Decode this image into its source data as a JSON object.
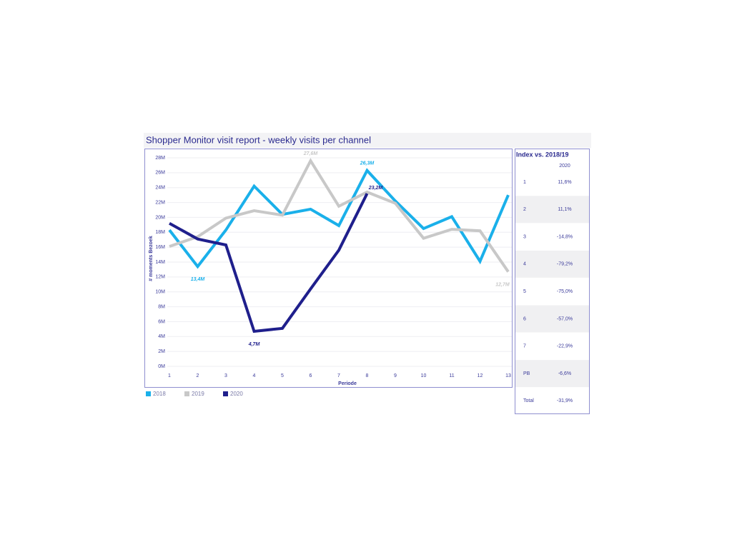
{
  "chart_data": {
    "type": "line",
    "title": "Shopper Monitor visit report - weekly visits per channel",
    "x_label": "Periode",
    "y_label": "# moments Bezoek",
    "categories": [
      "1",
      "2",
      "3",
      "4",
      "5",
      "6",
      "7",
      "8",
      "9",
      "10",
      "11",
      "12",
      "13"
    ],
    "series": [
      {
        "name": "2018",
        "color": "#1ab0ea",
        "values": [
          18.3,
          13.4,
          18.3,
          24.2,
          20.4,
          21.1,
          18.9,
          26.3,
          22.2,
          18.5,
          20.1,
          14.1,
          23.0
        ],
        "value_labels": [
          null,
          "13,4M",
          null,
          null,
          null,
          null,
          null,
          "26,3M",
          null,
          null,
          null,
          null,
          null
        ]
      },
      {
        "name": "2019",
        "color": "#c8c8c8",
        "values": [
          16.1,
          17.4,
          19.9,
          20.9,
          20.3,
          27.6,
          21.5,
          23.4,
          21.9,
          17.2,
          18.4,
          18.2,
          12.7
        ],
        "value_labels": [
          null,
          null,
          null,
          null,
          null,
          "27,6M",
          null,
          null,
          null,
          null,
          null,
          null,
          "12,7M"
        ]
      },
      {
        "name": "2020",
        "color": "#1f1f8c",
        "values": [
          19.2,
          17.1,
          16.3,
          4.7,
          5.1,
          10.4,
          15.6,
          23.2,
          null,
          null,
          null,
          null,
          null
        ],
        "value_labels": [
          null,
          null,
          null,
          "4,7M",
          null,
          null,
          null,
          "23,2M",
          null,
          null,
          null,
          null,
          null
        ]
      }
    ],
    "ylim": [
      0,
      28
    ],
    "yticks": [
      {
        "value": 0,
        "label": "0M"
      },
      {
        "value": 2,
        "label": "2M"
      },
      {
        "value": 4,
        "label": "4M"
      },
      {
        "value": 6,
        "label": "6M"
      },
      {
        "value": 8,
        "label": "8M"
      },
      {
        "value": 10,
        "label": "10M"
      },
      {
        "value": 12,
        "label": "12M"
      },
      {
        "value": 14,
        "label": "14M"
      },
      {
        "value": 16,
        "label": "16M"
      },
      {
        "value": 18,
        "label": "18M"
      },
      {
        "value": 20,
        "label": "20M"
      },
      {
        "value": 22,
        "label": "22M"
      },
      {
        "value": 24,
        "label": "24M"
      },
      {
        "value": 26,
        "label": "26M"
      },
      {
        "value": 28,
        "label": "28M"
      }
    ],
    "grid": true
  },
  "table": {
    "title": "Index vs. 2018/19",
    "header": "2020",
    "rows": [
      [
        "1",
        "11,6%"
      ],
      [
        "2",
        "11,1%"
      ],
      [
        "3",
        "-14,8%"
      ],
      [
        "4",
        "-79,2%"
      ],
      [
        "5",
        "-75,0%"
      ],
      [
        "6",
        "-57,0%"
      ],
      [
        "7",
        "-22,9%"
      ],
      [
        "PB",
        "-6,6%"
      ],
      [
        "Total",
        "-31,9%"
      ]
    ]
  }
}
